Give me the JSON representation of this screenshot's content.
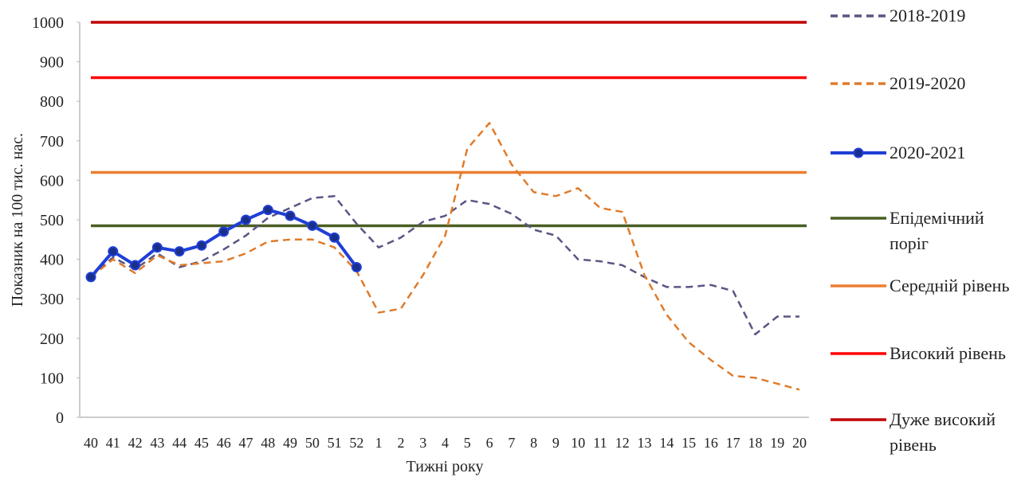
{
  "chart_data": {
    "type": "line",
    "y_label": "Показник на 100 тис. нас.",
    "x_label": "Тижні року",
    "categories": [
      "40",
      "41",
      "42",
      "43",
      "44",
      "45",
      "46",
      "47",
      "48",
      "49",
      "50",
      "51",
      "52",
      "1",
      "2",
      "3",
      "4",
      "5",
      "6",
      "7",
      "8",
      "9",
      "10",
      "11",
      "12",
      "13",
      "14",
      "15",
      "16",
      "17",
      "18",
      "19",
      "20"
    ],
    "series": [
      {
        "name": "2018-2019",
        "color": "#5b5584",
        "dashed": true,
        "markers": false,
        "values": [
          355,
          405,
          375,
          415,
          380,
          395,
          425,
          460,
          505,
          530,
          555,
          560,
          490,
          430,
          455,
          495,
          510,
          550,
          540,
          515,
          475,
          460,
          400,
          395,
          385,
          355,
          330,
          330,
          335,
          320,
          210,
          255,
          255
        ]
      },
      {
        "name": "2019-2020",
        "color": "#e07b2a",
        "dashed": true,
        "markers": false,
        "values": [
          355,
          400,
          365,
          410,
          385,
          390,
          395,
          415,
          445,
          450,
          450,
          430,
          370,
          265,
          275,
          360,
          460,
          680,
          745,
          640,
          570,
          560,
          580,
          530,
          520,
          360,
          260,
          190,
          145,
          105,
          100,
          85,
          70
        ]
      },
      {
        "name": "2020-2021",
        "color": "#1f3fd6",
        "dashed": false,
        "markers": true,
        "values": [
          355,
          420,
          385,
          430,
          420,
          435,
          470,
          500,
          525,
          510,
          485,
          455,
          380,
          null,
          null,
          null,
          null,
          null,
          null,
          null,
          null,
          null,
          null,
          null,
          null,
          null,
          null,
          null,
          null,
          null,
          null,
          null,
          null
        ]
      }
    ],
    "reference_lines": [
      {
        "name": "Епідемічний поріг",
        "color": "#4a5e23",
        "value": 485
      },
      {
        "name": "Середній рівень",
        "color": "#ed7d31",
        "value": 620
      },
      {
        "name": "Високий рівень",
        "color": "#ff0000",
        "value": 860
      },
      {
        "name": "Дуже високий рівень",
        "color": "#c00000",
        "value": 1000
      }
    ],
    "ylim": [
      0,
      1000
    ],
    "yticks": [
      0,
      100,
      200,
      300,
      400,
      500,
      600,
      700,
      800,
      900,
      1000
    ],
    "grid": false
  }
}
